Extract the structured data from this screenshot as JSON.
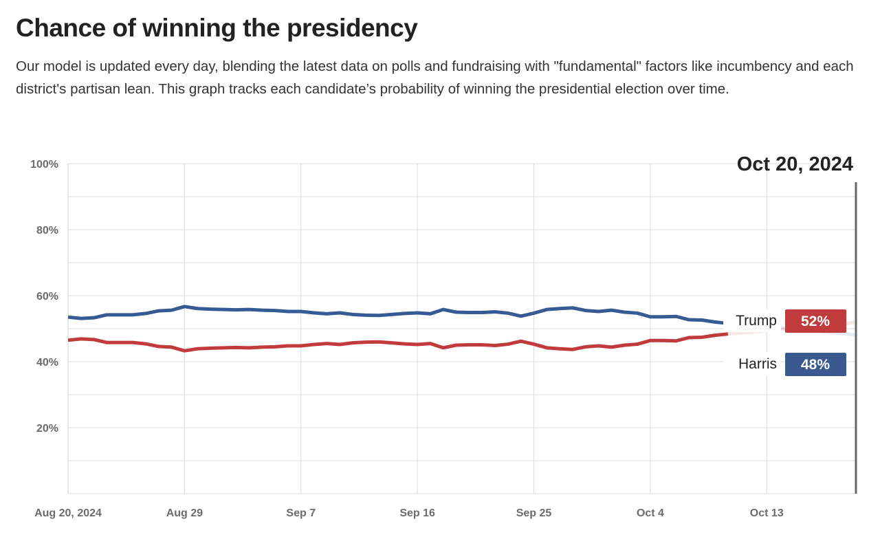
{
  "header": {
    "title": "Chance of winning the presidency",
    "description": "Our model is updated every day, blending the latest data on polls and fundraising with \"fundamental\" factors like incumbency and each district's partisan lean. This graph tracks each candidate’s probability of winning the presidential election over time."
  },
  "chart_data": {
    "type": "line",
    "title": "Chance of winning the presidency",
    "xlabel": "",
    "ylabel": "",
    "ylim": [
      0,
      100
    ],
    "yticks": [
      100,
      80,
      60,
      40,
      20
    ],
    "ytick_labels": [
      "100%",
      "80%",
      "60%",
      "40%",
      "20%"
    ],
    "x_start": "2024-08-20",
    "x_end": "2024-10-20",
    "xtick_labels": [
      "Aug 20, 2024",
      "Aug 29",
      "Sep 7",
      "Sep 16",
      "Sep 25",
      "Oct 4",
      "Oct 13"
    ],
    "xtick_day_offsets": [
      0,
      9,
      18,
      27,
      36,
      45,
      54
    ],
    "grid": true,
    "selected_date": "Oct 20, 2024",
    "series": [
      {
        "name": "Harris",
        "color": "#365a93",
        "values": [
          53.5,
          53.1,
          53.3,
          54.2,
          54.2,
          54.2,
          54.6,
          55.4,
          55.6,
          56.7,
          56.1,
          55.9,
          55.8,
          55.7,
          55.8,
          55.6,
          55.5,
          55.2,
          55.2,
          54.8,
          54.5,
          54.8,
          54.3,
          54.1,
          54.0,
          54.3,
          54.6,
          54.8,
          54.5,
          55.8,
          55.0,
          54.9,
          54.9,
          55.1,
          54.7,
          53.8,
          54.7,
          55.8,
          56.1,
          56.3,
          55.5,
          55.2,
          55.6,
          55.0,
          54.7,
          53.6,
          53.6,
          53.7,
          52.7,
          52.6,
          52.0,
          51.6,
          51.3,
          51.0,
          50.6,
          50.3,
          50.0,
          49.6,
          49.2,
          48.8,
          48.5,
          48.0
        ]
      },
      {
        "name": "Trump",
        "color": "#c23b3c",
        "values": [
          46.5,
          46.9,
          46.7,
          45.8,
          45.8,
          45.8,
          45.4,
          44.6,
          44.4,
          43.3,
          43.9,
          44.1,
          44.2,
          44.3,
          44.2,
          44.4,
          44.5,
          44.8,
          44.8,
          45.2,
          45.5,
          45.2,
          45.7,
          45.9,
          46.0,
          45.7,
          45.4,
          45.2,
          45.5,
          44.2,
          45.0,
          45.1,
          45.1,
          44.9,
          45.3,
          46.2,
          45.3,
          44.2,
          43.9,
          43.7,
          44.5,
          44.8,
          44.4,
          45.0,
          45.3,
          46.4,
          46.4,
          46.3,
          47.3,
          47.4,
          48.0,
          48.4,
          48.7,
          49.0,
          49.4,
          49.7,
          50.0,
          50.4,
          50.8,
          51.2,
          51.5,
          52.0
        ]
      }
    ],
    "end_labels": [
      {
        "name": "Trump",
        "value_label": "52%",
        "color": "#c23b3c"
      },
      {
        "name": "Harris",
        "value_label": "48%",
        "color": "#3a5a8f"
      }
    ]
  }
}
